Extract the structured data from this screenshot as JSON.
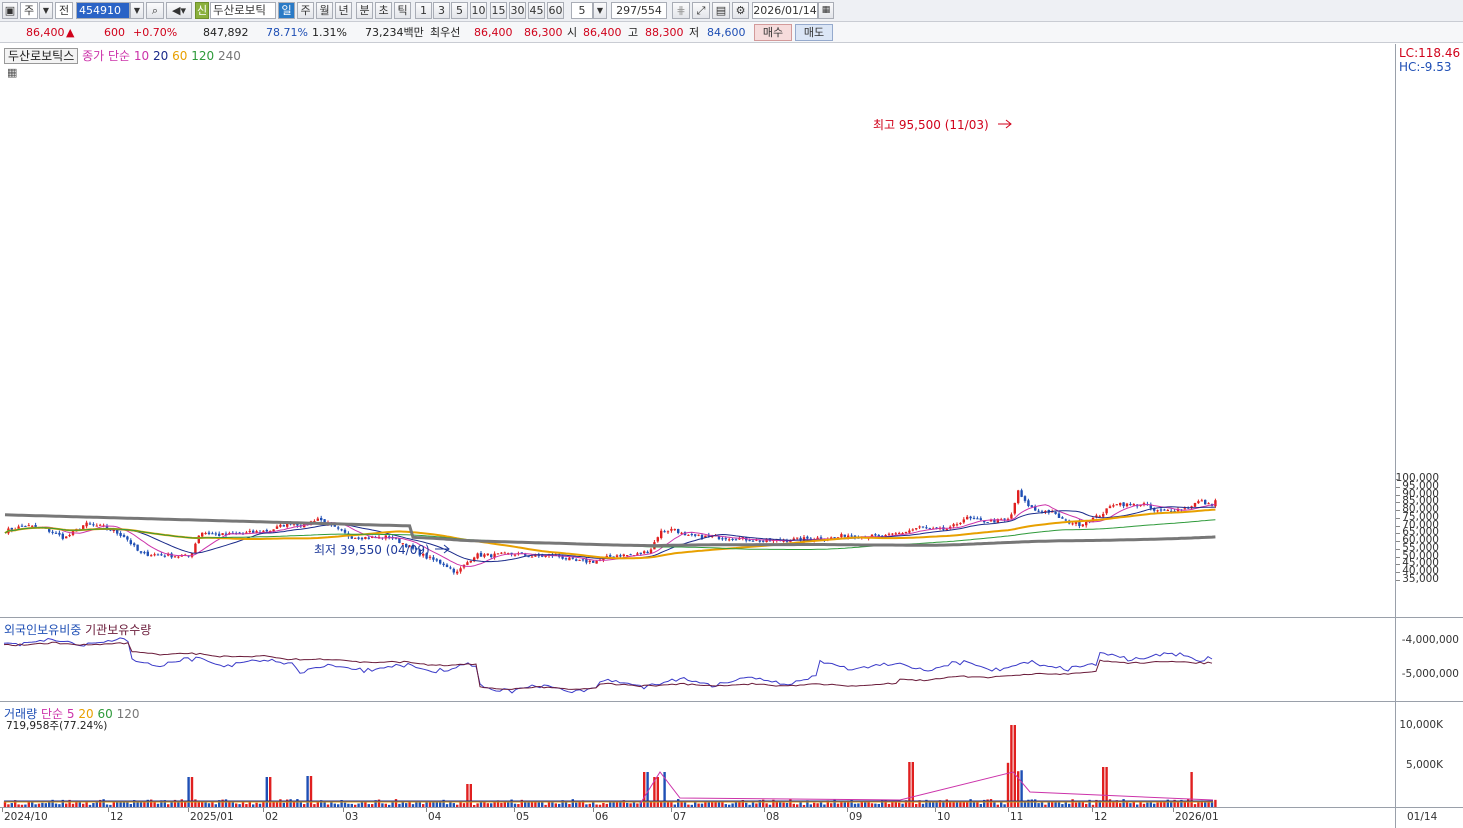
{
  "toolbar": {
    "market": "주",
    "prev": "전",
    "code": "454910",
    "name_badge": "신",
    "stock_name": "두산로보틱",
    "period_day": "일",
    "period_week": "주",
    "period_month": "월",
    "period_year": "년",
    "period_minute": "분",
    "period_second": "초",
    "period_tick": "틱",
    "intervals": [
      "1",
      "3",
      "5",
      "10",
      "15",
      "30",
      "45",
      "60"
    ],
    "interval_sel": "5",
    "page": "297/554",
    "date": "2026/01/14"
  },
  "quote": {
    "price": "86,400",
    "up_mark": "▲",
    "change": "600",
    "change_pct": "+0.70%",
    "volume": "847,892",
    "pct1": "78.71%",
    "pct2": "1.31%",
    "amount": "73,234백만",
    "best_label": "최우선",
    "best_ask": "86,400",
    "best_bid": "86,300",
    "open_label": "시",
    "open": "86,400",
    "high_label": "고",
    "high": "88,300",
    "low_label": "저",
    "low": "84,600",
    "buy": "매수",
    "sell": "매도"
  },
  "main_pane": {
    "stock": "두산로보틱스",
    "ma_label": "종가 단순",
    "ma": [
      "10",
      "20",
      "60",
      "120",
      "240"
    ],
    "lc": "LC:118.46",
    "hc": "HC:-9.53",
    "y_ticks": [
      "100,000",
      "95,000",
      "90,000",
      "85,000",
      "80,000",
      "75,000",
      "70,000",
      "65,000",
      "60,000",
      "55,000",
      "50,000",
      "45,000",
      "40,000",
      "35,000"
    ],
    "high_ann": "최고 95,500 (11/03)",
    "low_ann": "최저 39,550 (04/09)"
  },
  "foreign_pane": {
    "label1": "외국인보유비중",
    "label2": "기관보유수량",
    "y_ticks": [
      "-4,000,000",
      "-5,000,000"
    ]
  },
  "volume_pane": {
    "label": "거래량",
    "ma_label": "단순",
    "ma": [
      "5",
      "20",
      "60",
      "120"
    ],
    "info": "719,958주(77.24%)",
    "y_ticks": [
      "10,000K",
      "5,000K"
    ]
  },
  "x_ticks": [
    "2024/10",
    "12",
    "2025/01",
    "02",
    "03",
    "04",
    "05",
    "06",
    "07",
    "08",
    "09",
    "10",
    "11",
    "12",
    "2026/01"
  ],
  "x_end": "01/14",
  "colors": {
    "up": "#e02020",
    "down": "#1f4fb5",
    "ma10": "#cc33aa",
    "ma20": "#1a2a8a",
    "ma60": "#e8a000",
    "ma120": "#2e9a3a",
    "ma240": "#777777"
  },
  "chart_data": {
    "type": "candlestick",
    "series": [
      {
        "name": "종가 단순 10"
      },
      {
        "name": "20"
      },
      {
        "name": "60"
      },
      {
        "name": "120"
      },
      {
        "name": "240"
      }
    ],
    "close_approx": [
      [
        0,
        66500
      ],
      [
        20,
        70000
      ],
      [
        40,
        68000
      ],
      [
        60,
        62000
      ],
      [
        80,
        71000
      ],
      [
        100,
        69000
      ],
      [
        120,
        63000
      ],
      [
        135,
        52000
      ],
      [
        160,
        51000
      ],
      [
        185,
        50000
      ],
      [
        195,
        66000
      ],
      [
        215,
        64000
      ],
      [
        240,
        65000
      ],
      [
        265,
        67000
      ],
      [
        285,
        72000
      ],
      [
        300,
        70000
      ],
      [
        312,
        75000
      ],
      [
        325,
        70000
      ],
      [
        345,
        63000
      ],
      [
        370,
        62000
      ],
      [
        385,
        63000
      ],
      [
        400,
        58000
      ],
      [
        420,
        50000
      ],
      [
        440,
        45000
      ],
      [
        452,
        39550
      ],
      [
        460,
        45000
      ],
      [
        470,
        51000
      ],
      [
        490,
        51000
      ],
      [
        510,
        52000
      ],
      [
        530,
        50000
      ],
      [
        550,
        51000
      ],
      [
        570,
        47000
      ],
      [
        590,
        47000
      ],
      [
        610,
        51000
      ],
      [
        630,
        51000
      ],
      [
        645,
        54000
      ],
      [
        655,
        66000
      ],
      [
        670,
        68000
      ],
      [
        680,
        63000
      ],
      [
        700,
        63000
      ],
      [
        730,
        62000
      ],
      [
        760,
        60000
      ],
      [
        790,
        61000
      ],
      [
        810,
        62000
      ],
      [
        830,
        62000
      ],
      [
        840,
        64000
      ],
      [
        860,
        63000
      ],
      [
        880,
        63000
      ],
      [
        900,
        66000
      ],
      [
        915,
        69000
      ],
      [
        930,
        67000
      ],
      [
        945,
        68000
      ],
      [
        960,
        75000
      ],
      [
        975,
        73000
      ],
      [
        990,
        73000
      ],
      [
        1005,
        74000
      ],
      [
        1013,
        92000
      ],
      [
        1020,
        85000
      ],
      [
        1030,
        80000
      ],
      [
        1045,
        79000
      ],
      [
        1060,
        73000
      ],
      [
        1075,
        71000
      ],
      [
        1090,
        75000
      ],
      [
        1100,
        79000
      ],
      [
        1110,
        85000
      ],
      [
        1125,
        83000
      ],
      [
        1140,
        84000
      ],
      [
        1150,
        79000
      ],
      [
        1165,
        80000
      ],
      [
        1180,
        81000
      ],
      [
        1195,
        86000
      ],
      [
        1205,
        83000
      ],
      [
        1213,
        86400
      ]
    ]
  }
}
